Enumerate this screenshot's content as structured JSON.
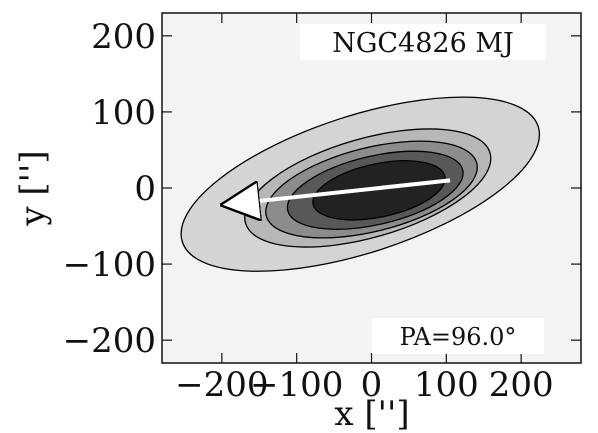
{
  "chart_data": {
    "type": "contour",
    "title": "NGC4826 MJ",
    "xlabel": "x ['']",
    "ylabel": "y ['']",
    "xlim": [
      -280,
      280
    ],
    "ylim": [
      -230,
      230
    ],
    "x_ticks": [
      -200,
      -100,
      0,
      100,
      200
    ],
    "y_ticks": [
      -200,
      -100,
      0,
      100,
      200
    ],
    "x_tick_labels": [
      "−200",
      "−100",
      "0",
      "100",
      "200"
    ],
    "y_tick_labels": [
      "−200",
      "−100",
      "0",
      "100",
      "200"
    ],
    "grid": false,
    "annotation": "PA=96.0°",
    "position_angle_deg": 96.0,
    "arrow": {
      "from": [
        105,
        10
      ],
      "to": [
        -160,
        -18
      ]
    },
    "contour_levels": [
      {
        "center": [
          -15,
          5
        ],
        "semi_major": 250,
        "semi_minor": 90,
        "angle_deg": 18,
        "fill": "#d4d4d4"
      },
      {
        "center": [
          -5,
          0
        ],
        "semi_major": 170,
        "semi_minor": 65,
        "angle_deg": 16,
        "fill": "#b7b7b7"
      },
      {
        "center": [
          0,
          -2
        ],
        "semi_major": 145,
        "semi_minor": 55,
        "angle_deg": 14,
        "fill": "#8c8c8c"
      },
      {
        "center": [
          5,
          -3
        ],
        "semi_major": 120,
        "semi_minor": 45,
        "angle_deg": 13,
        "fill": "#585858"
      },
      {
        "center": [
          10,
          -3
        ],
        "semi_major": 90,
        "semi_minor": 35,
        "angle_deg": 12,
        "fill": "#222222"
      }
    ],
    "colors": {
      "background": "#f3f3f3",
      "arrow": "#ffffff",
      "contour_line": "#000000"
    }
  }
}
